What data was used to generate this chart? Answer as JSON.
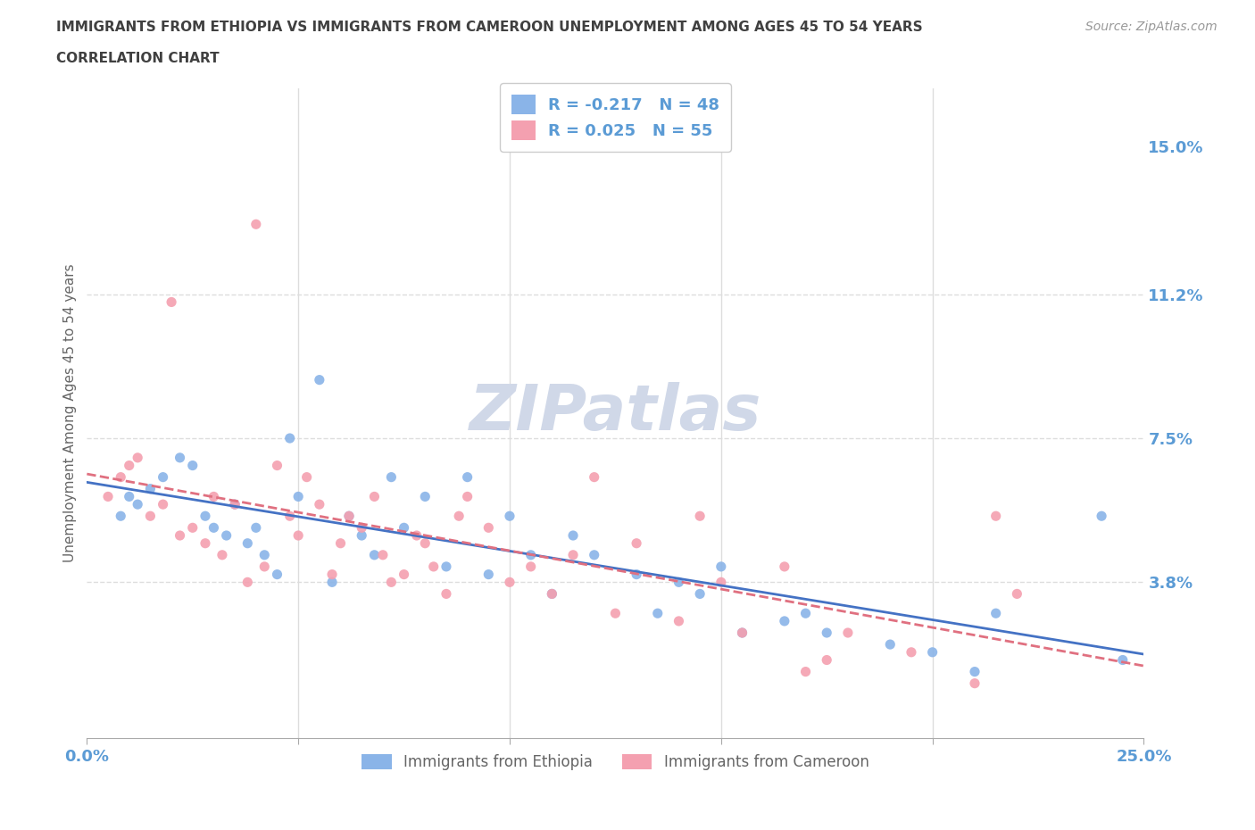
{
  "title_line1": "IMMIGRANTS FROM ETHIOPIA VS IMMIGRANTS FROM CAMEROON UNEMPLOYMENT AMONG AGES 45 TO 54 YEARS",
  "title_line2": "CORRELATION CHART",
  "source": "Source: ZipAtlas.com",
  "ylabel": "Unemployment Among Ages 45 to 54 years",
  "xlim": [
    0.0,
    0.25
  ],
  "ylim": [
    -0.002,
    0.165
  ],
  "ytick_right": [
    0.038,
    0.075,
    0.112,
    0.15
  ],
  "ytick_right_labels": [
    "3.8%",
    "7.5%",
    "11.2%",
    "15.0%"
  ],
  "hline_values": [
    0.112,
    0.075,
    0.038
  ],
  "color_ethiopia": "#8ab4e8",
  "color_cameroon": "#f4a0b0",
  "legend_ethiopia": "Immigrants from Ethiopia",
  "legend_cameroon": "Immigrants from Cameroon",
  "R_ethiopia": -0.217,
  "N_ethiopia": 48,
  "R_cameroon": 0.025,
  "N_cameroon": 55,
  "ethiopia_x": [
    0.01,
    0.008,
    0.012,
    0.015,
    0.018,
    0.022,
    0.025,
    0.028,
    0.03,
    0.033,
    0.035,
    0.038,
    0.04,
    0.042,
    0.045,
    0.048,
    0.05,
    0.055,
    0.058,
    0.062,
    0.065,
    0.068,
    0.072,
    0.075,
    0.08,
    0.085,
    0.09,
    0.095,
    0.1,
    0.105,
    0.11,
    0.115,
    0.12,
    0.13,
    0.135,
    0.14,
    0.145,
    0.15,
    0.155,
    0.165,
    0.17,
    0.175,
    0.19,
    0.2,
    0.21,
    0.215,
    0.24,
    0.245
  ],
  "ethiopia_y": [
    0.06,
    0.055,
    0.058,
    0.062,
    0.065,
    0.07,
    0.068,
    0.055,
    0.052,
    0.05,
    0.058,
    0.048,
    0.052,
    0.045,
    0.04,
    0.075,
    0.06,
    0.09,
    0.038,
    0.055,
    0.05,
    0.045,
    0.065,
    0.052,
    0.06,
    0.042,
    0.065,
    0.04,
    0.055,
    0.045,
    0.035,
    0.05,
    0.045,
    0.04,
    0.03,
    0.038,
    0.035,
    0.042,
    0.025,
    0.028,
    0.03,
    0.025,
    0.022,
    0.02,
    0.015,
    0.03,
    0.055,
    0.018
  ],
  "cameroon_x": [
    0.005,
    0.008,
    0.01,
    0.012,
    0.015,
    0.018,
    0.02,
    0.022,
    0.025,
    0.028,
    0.03,
    0.032,
    0.035,
    0.038,
    0.04,
    0.042,
    0.045,
    0.048,
    0.05,
    0.052,
    0.055,
    0.058,
    0.06,
    0.062,
    0.065,
    0.068,
    0.07,
    0.072,
    0.075,
    0.078,
    0.08,
    0.082,
    0.085,
    0.088,
    0.09,
    0.095,
    0.1,
    0.105,
    0.11,
    0.115,
    0.12,
    0.125,
    0.13,
    0.14,
    0.145,
    0.15,
    0.155,
    0.165,
    0.17,
    0.175,
    0.18,
    0.195,
    0.21,
    0.215,
    0.22
  ],
  "cameroon_y": [
    0.06,
    0.065,
    0.068,
    0.07,
    0.055,
    0.058,
    0.11,
    0.05,
    0.052,
    0.048,
    0.06,
    0.045,
    0.058,
    0.038,
    0.13,
    0.042,
    0.068,
    0.055,
    0.05,
    0.065,
    0.058,
    0.04,
    0.048,
    0.055,
    0.052,
    0.06,
    0.045,
    0.038,
    0.04,
    0.05,
    0.048,
    0.042,
    0.035,
    0.055,
    0.06,
    0.052,
    0.038,
    0.042,
    0.035,
    0.045,
    0.065,
    0.03,
    0.048,
    0.028,
    0.055,
    0.038,
    0.025,
    0.042,
    0.015,
    0.018,
    0.025,
    0.02,
    0.012,
    0.055,
    0.035
  ],
  "background_color": "#ffffff",
  "grid_color": "#dddddd",
  "title_color": "#404040",
  "tick_label_color": "#5b9bd5",
  "trendline_ethiopia": "#4472c4",
  "trendline_cameroon": "#e07080",
  "watermark_text": "ZIPatlas",
  "watermark_color": "#d0d8e8",
  "watermark_fontsize": 52
}
